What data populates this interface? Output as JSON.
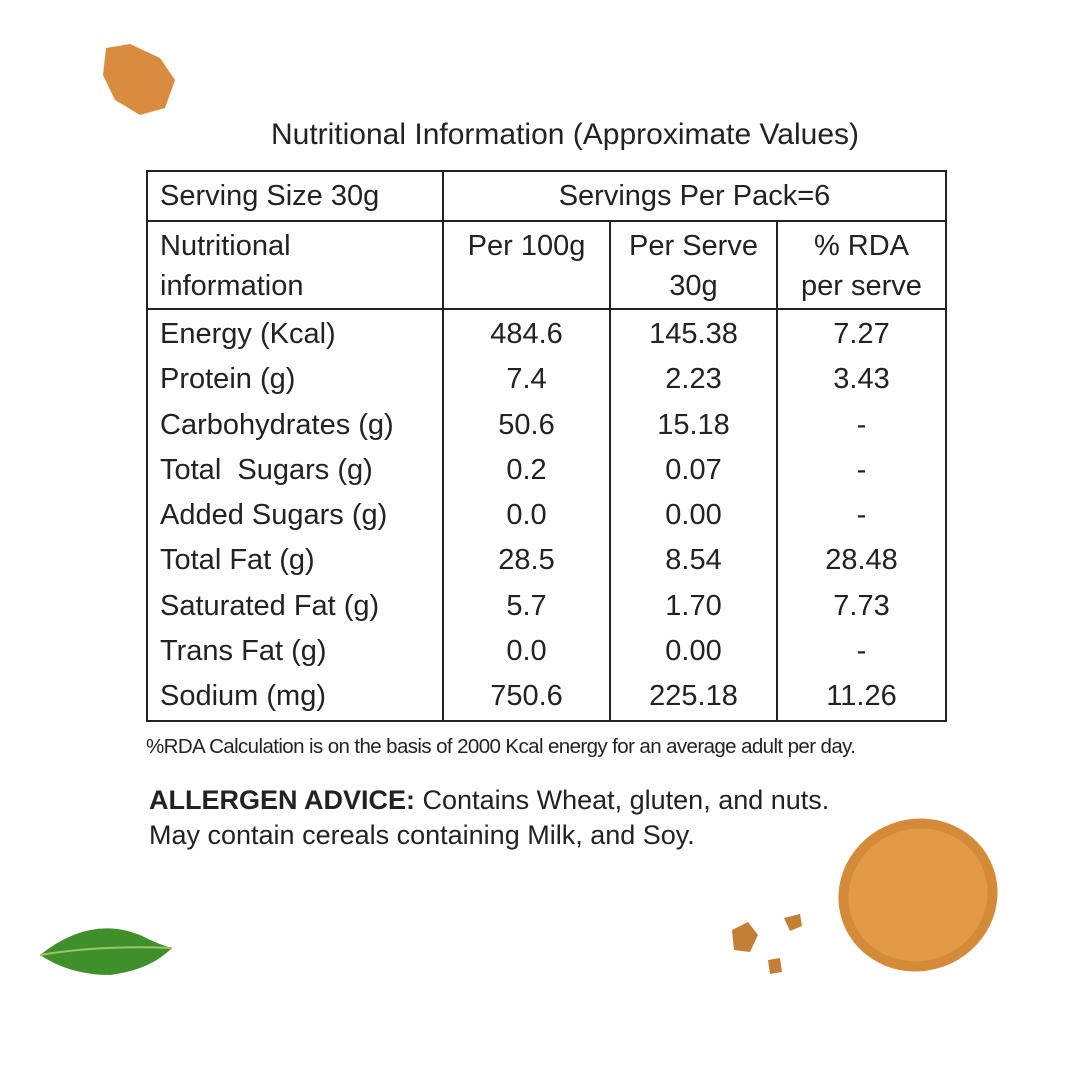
{
  "title": "Nutritional Information (Approximate Values)",
  "table": {
    "top": [
      "Serving Size 30g",
      "Servings Per Pack=6"
    ],
    "header": [
      [
        "Nutritional",
        "information"
      ],
      [
        "Per 100g"
      ],
      [
        "Per Serve",
        "30g"
      ],
      [
        "% RDA",
        "per serve"
      ]
    ],
    "rows": [
      [
        "Energy (Kcal)",
        "484.6",
        "145.38",
        "7.27"
      ],
      [
        "Protein (g)",
        "7.4",
        "2.23",
        "3.43"
      ],
      [
        "Carbohydrates (g)",
        "50.6",
        "15.18",
        "-"
      ],
      [
        "Total  Sugars (g)",
        "0.2",
        "0.07",
        "-"
      ],
      [
        "Added Sugars (g)",
        "0.0",
        "0.00",
        "-"
      ],
      [
        "Total Fat (g)",
        "28.5",
        "8.54",
        "28.48"
      ],
      [
        "Saturated Fat (g)",
        "5.7",
        "1.70",
        "7.73"
      ],
      [
        "Trans Fat (g)",
        "0.0",
        "0.00",
        "-"
      ],
      [
        "Sodium (mg)",
        "750.6",
        "225.18",
        "11.26"
      ]
    ]
  },
  "footnote": "%RDA Calculation is on the basis of 2000 Kcal energy for an average adult per day.",
  "allergen": {
    "label": "ALLERGEN ADVICE:",
    "lines": [
      "Contains Wheat, gluten, and nuts.",
      "May contain cereals containing Milk, and Soy."
    ]
  }
}
